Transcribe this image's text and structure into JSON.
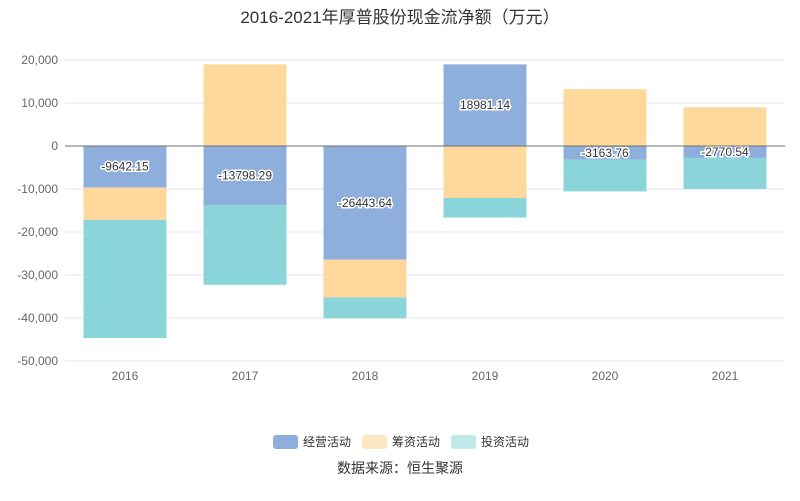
{
  "chart_data": {
    "type": "bar",
    "stacked": true,
    "title": "2016-2021年厚普股份现金流净额（万元）",
    "source": "数据来源：恒生聚源",
    "categories": [
      "2016",
      "2017",
      "2018",
      "2019",
      "2020",
      "2021"
    ],
    "ylim": [
      -50000,
      20000
    ],
    "yticks": [
      "20,000",
      "10,000",
      "0",
      "-10,000",
      "-20,000",
      "-30,000",
      "-40,000",
      "-50,000"
    ],
    "ytick_values": [
      20000,
      10000,
      0,
      -10000,
      -20000,
      -30000,
      -40000,
      -50000
    ],
    "grid": true,
    "legend_position": "bottom",
    "series": [
      {
        "name": "经营活动",
        "color": "#8eaedb",
        "values": [
          -9642.15,
          -13798.29,
          -26443.64,
          18981.14,
          -3163.76,
          -2770.54
        ],
        "labels": [
          "-9642.15",
          "-13798.29",
          "-26443.64",
          "18981.14",
          "-3163.76",
          "-2770.54"
        ]
      },
      {
        "name": "筹资活动",
        "color": "#fed99b",
        "values": [
          -7530,
          19000,
          -8780,
          -12100,
          13230,
          9000
        ]
      },
      {
        "name": "投资活动",
        "color": "#89d5d9",
        "values": [
          -27480,
          -18480,
          -4850,
          -4530,
          -7390,
          -7230
        ]
      }
    ]
  }
}
